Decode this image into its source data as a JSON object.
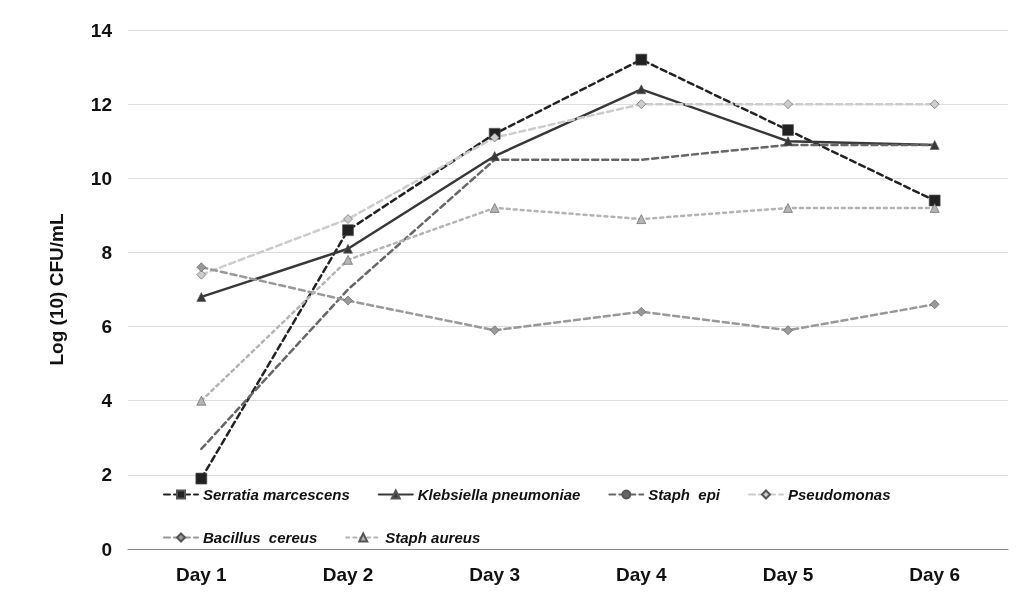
{
  "chart_data": {
    "type": "line",
    "ylabel": "Log (10) CFU/mL",
    "categories": [
      "Day 1",
      "Day 2",
      "Day 3",
      "Day 4",
      "Day 5",
      "Day 6"
    ],
    "ylim": [
      0,
      14
    ],
    "yticks": [
      0,
      2,
      4,
      6,
      8,
      10,
      12,
      14
    ],
    "grid": "y",
    "legend": "bottom",
    "series": [
      {
        "name": "Serratia marcescens",
        "color": "#222222",
        "marker": "square",
        "line_style": "dashed",
        "values": [
          1.9,
          8.6,
          11.2,
          13.2,
          11.3,
          9.4
        ]
      },
      {
        "name": "Klebsiella pneumoniae",
        "color": "#383838",
        "marker": "triangle",
        "line_style": "solid",
        "values": [
          6.8,
          8.1,
          10.6,
          12.4,
          11.0,
          10.9
        ]
      },
      {
        "name": "Staph  epi",
        "color": "#666666",
        "marker": "none",
        "line_style": "dashed",
        "values": [
          2.7,
          7.0,
          10.5,
          10.5,
          10.9,
          10.9
        ]
      },
      {
        "name": "Pseudomonas",
        "color": "#cccccc",
        "marker": "diamond",
        "line_style": "dashed",
        "values": [
          7.4,
          8.9,
          11.1,
          12.0,
          12.0,
          12.0
        ]
      },
      {
        "name": "Bacillus  cereus",
        "color": "#999999",
        "marker": "diamond",
        "line_style": "dashed",
        "values": [
          7.6,
          6.7,
          5.9,
          6.4,
          5.9,
          6.6
        ]
      },
      {
        "name": "Staph aureus",
        "color": "#b4b4b4",
        "marker": "triangle",
        "line_style": "dotted",
        "values": [
          4.0,
          7.8,
          9.2,
          8.9,
          9.2,
          9.2
        ]
      }
    ]
  }
}
